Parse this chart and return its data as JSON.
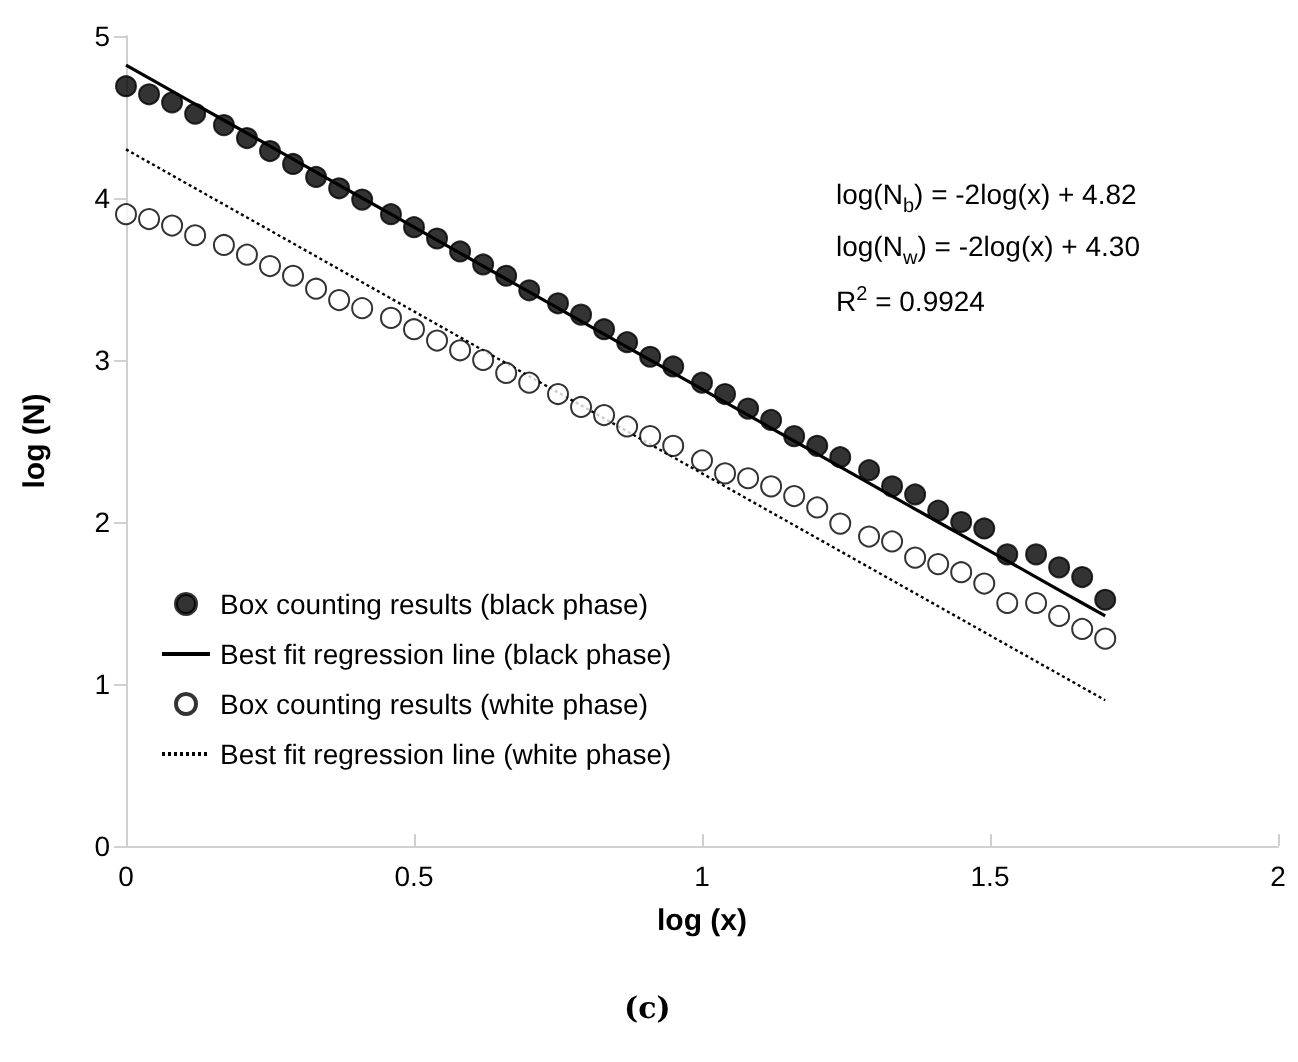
{
  "chart_data": {
    "type": "scatter",
    "xlabel": "log (x)",
    "ylabel": "log (N)",
    "xlim": [
      0,
      2
    ],
    "xticks": [
      0,
      0.5,
      1,
      1.5,
      2
    ],
    "ylim": [
      0,
      5
    ],
    "yticks": [
      0,
      1,
      2,
      3,
      4,
      5
    ],
    "grid": false,
    "legend": "bottom left",
    "x": [
      0,
      0.04,
      0.08,
      0.12,
      0.17,
      0.21,
      0.25,
      0.29,
      0.33,
      0.37,
      0.41,
      0.46,
      0.5,
      0.54,
      0.58,
      0.62,
      0.66,
      0.7,
      0.75,
      0.79,
      0.83,
      0.87,
      0.91,
      0.95,
      1,
      1.04,
      1.08,
      1.12,
      1.16,
      1.2,
      1.24,
      1.29,
      1.33,
      1.37,
      1.41,
      1.45,
      1.49,
      1.53,
      1.58,
      1.62,
      1.66,
      1.7
    ],
    "series": [
      {
        "name": "Box counting results (black phase)",
        "marker": "circle",
        "color": "#000000",
        "values": [
          4.69,
          4.64,
          4.59,
          4.52,
          4.45,
          4.37,
          4.29,
          4.21,
          4.13,
          4.06,
          3.99,
          3.9,
          3.82,
          3.75,
          3.67,
          3.59,
          3.52,
          3.43,
          3.35,
          3.28,
          3.19,
          3.11,
          3.02,
          2.96,
          2.86,
          2.79,
          2.7,
          2.63,
          2.53,
          2.47,
          2.4,
          2.32,
          2.22,
          2.17,
          2.07,
          2.0,
          1.96,
          1.8,
          1.8,
          1.72,
          1.66,
          1.52
        ]
      },
      {
        "name": "Best fit regression line (black phase)",
        "type": "line",
        "marker": "none",
        "color": "#000000",
        "line_style": "solid",
        "values": [
          4.82,
          4.74,
          4.66,
          4.58,
          4.48,
          4.4,
          4.32,
          4.24,
          4.16,
          4.08,
          4.0,
          3.9,
          3.82,
          3.74,
          3.66,
          3.58,
          3.5,
          3.42,
          3.32,
          3.24,
          3.16,
          3.08,
          3.0,
          2.92,
          2.82,
          2.74,
          2.66,
          2.58,
          2.5,
          2.42,
          2.34,
          2.24,
          2.16,
          2.08,
          2.0,
          1.92,
          1.84,
          1.76,
          1.66,
          1.58,
          1.5,
          1.42
        ]
      },
      {
        "name": "Box counting results (white phase)",
        "marker": "circle",
        "color": "#ffffff",
        "values": [
          3.9,
          3.87,
          3.83,
          3.77,
          3.71,
          3.65,
          3.58,
          3.52,
          3.44,
          3.37,
          3.32,
          3.26,
          3.19,
          3.12,
          3.06,
          3.0,
          2.92,
          2.86,
          2.79,
          2.71,
          2.66,
          2.59,
          2.53,
          2.47,
          2.38,
          2.3,
          2.27,
          2.22,
          2.16,
          2.09,
          1.99,
          1.91,
          1.88,
          1.78,
          1.74,
          1.69,
          1.62,
          1.5,
          1.5,
          1.42,
          1.34,
          1.28
        ]
      },
      {
        "name": "Best fit regression line (white phase)",
        "type": "line",
        "marker": "none",
        "color": "#000000",
        "line_style": "dotted",
        "values": [
          4.3,
          4.22,
          4.14,
          4.06,
          3.96,
          3.88,
          3.8,
          3.72,
          3.64,
          3.56,
          3.48,
          3.38,
          3.3,
          3.22,
          3.14,
          3.06,
          2.98,
          2.9,
          2.8,
          2.72,
          2.64,
          2.56,
          2.48,
          2.4,
          2.3,
          2.22,
          2.14,
          2.06,
          1.98,
          1.9,
          1.82,
          1.72,
          1.64,
          1.56,
          1.48,
          1.4,
          1.32,
          1.24,
          1.14,
          1.06,
          0.98,
          0.9
        ]
      }
    ],
    "annotations": [
      "log(N$_{b}$) = -2log(x) + 4.82",
      "log(N$_{w}$) = -2log(x) + 4.30",
      "R$^{2}$ = 0.9924",
      "(c)"
    ]
  }
}
